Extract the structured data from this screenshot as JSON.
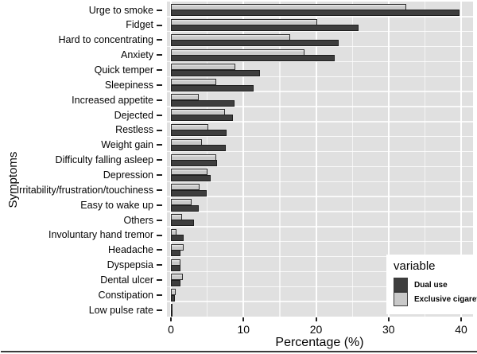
{
  "figure": {
    "y_axis_title": "Symptoms",
    "x_axis_title": "Percentage (%)",
    "legend": {
      "title": "variable",
      "background": "#ffffff"
    },
    "colors": {
      "panel_background": "#e0e0e0",
      "gridline": "#ffffff",
      "dual_use_bar": "#3e3e3e",
      "exclusive_cigarette_bar": "#c9c9c9",
      "bar_border": "#1e1e1e",
      "text": "#050505"
    }
  },
  "chart_data": {
    "type": "bar",
    "orientation": "horizontal",
    "title": "",
    "xlabel": "Percentage (%)",
    "ylabel": "Symptoms",
    "xlim": [
      0,
      41.6
    ],
    "x_ticks": [
      0,
      10,
      20,
      30,
      40
    ],
    "x_minor_step": 5,
    "grid": true,
    "legend_title": "variable",
    "legend_position": "inside-bottom-right",
    "categories": [
      "Urge to smoke",
      "Fidget",
      "Hard to concentrating",
      "Anxiety",
      "Quick temper",
      "Sleepiness",
      "Increased appetite",
      "Dejected",
      "Restless",
      "Weight gain",
      "Difficulty falling asleep",
      "Depression",
      "Irritability/frustration/touchiness",
      "Easy to wake up",
      "Others",
      "Involuntary hand tremor",
      "Headache",
      "Dyspepsia",
      "Dental ulcer",
      "Constipation",
      "Low pulse rate"
    ],
    "series": [
      {
        "name": "Dual use",
        "color": "#3e3e3e",
        "values": [
          39.8,
          25.9,
          23.1,
          22.6,
          12.3,
          11.4,
          8.8,
          8.6,
          7.7,
          7.6,
          6.4,
          5.5,
          4.9,
          3.8,
          3.2,
          1.8,
          1.3,
          1.3,
          1.3,
          0.6,
          0.2
        ]
      },
      {
        "name": "Exclusive cigarette",
        "color": "#c9c9c9",
        "values": [
          32.4,
          20.2,
          16.4,
          18.4,
          8.9,
          6.2,
          3.8,
          7.5,
          5.2,
          4.3,
          6.3,
          5.0,
          3.9,
          2.8,
          1.5,
          0.8,
          1.8,
          1.3,
          1.6,
          0.7,
          0.2
        ]
      }
    ]
  }
}
